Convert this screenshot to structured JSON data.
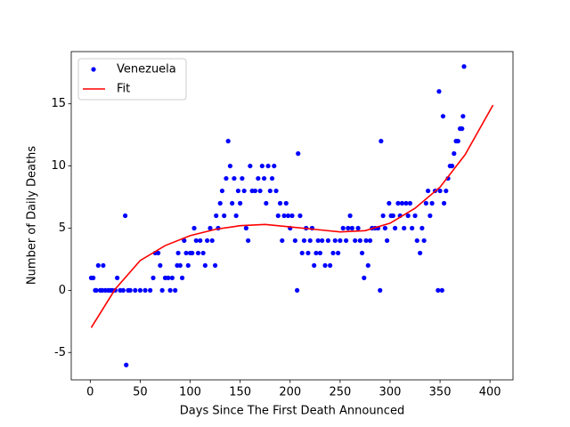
{
  "chart_data": {
    "type": "scatter",
    "xlabel": "Days Since The First Death Announced",
    "ylabel": "Number of Daily Deaths",
    "xlim": [
      -19,
      423
    ],
    "ylim": [
      -7.2,
      19.2
    ],
    "xticks": [
      0,
      50,
      100,
      150,
      200,
      250,
      300,
      350,
      400
    ],
    "yticks": [
      -5,
      0,
      5,
      10,
      15
    ],
    "grid": false,
    "legend": "upper left",
    "series": [
      {
        "name": "Venezuela",
        "type": "scatter",
        "color": "#0000ff",
        "x": [
          1,
          3,
          5,
          6,
          8,
          10,
          12,
          13,
          15,
          18,
          20,
          22,
          25,
          27,
          30,
          33,
          35,
          36,
          38,
          40,
          45,
          50,
          55,
          60,
          63,
          65,
          68,
          70,
          72,
          75,
          78,
          80,
          82,
          85,
          87,
          88,
          90,
          92,
          94,
          96,
          98,
          100,
          102,
          104,
          106,
          108,
          110,
          113,
          115,
          117,
          120,
          122,
          125,
          126,
          128,
          130,
          132,
          134,
          136,
          138,
          140,
          142,
          144,
          146,
          148,
          150,
          152,
          154,
          156,
          158,
          160,
          162,
          165,
          168,
          170,
          172,
          174,
          176,
          178,
          180,
          182,
          184,
          186,
          188,
          190,
          192,
          194,
          196,
          198,
          200,
          202,
          205,
          207,
          208,
          210,
          212,
          214,
          216,
          218,
          220,
          222,
          224,
          226,
          228,
          230,
          232,
          235,
          238,
          240,
          243,
          245,
          248,
          250,
          253,
          256,
          258,
          260,
          262,
          265,
          268,
          270,
          272,
          274,
          276,
          278,
          280,
          282,
          285,
          288,
          290,
          291,
          293,
          295,
          297,
          299,
          301,
          303,
          305,
          308,
          310,
          312,
          314,
          316,
          318,
          320,
          322,
          325,
          327,
          330,
          332,
          334,
          336,
          338,
          340,
          342,
          345,
          348,
          349,
          350,
          352,
          353,
          354,
          356,
          358,
          360,
          362,
          364,
          366,
          368,
          370,
          372,
          373,
          374
        ],
        "values": [
          1,
          1,
          0,
          0,
          2,
          0,
          0,
          2,
          0,
          0,
          0,
          0,
          0,
          1,
          0,
          0,
          6,
          -6,
          0,
          0,
          0,
          0,
          0,
          0,
          1,
          3,
          3,
          2,
          0,
          1,
          1,
          0,
          1,
          0,
          2,
          3,
          2,
          1,
          4,
          3,
          2,
          3,
          3,
          5,
          4,
          3,
          4,
          3,
          2,
          4,
          5,
          4,
          2,
          6,
          5,
          7,
          8,
          6,
          9,
          12,
          10,
          7,
          9,
          6,
          8,
          7,
          9,
          8,
          5,
          4,
          10,
          8,
          8,
          9,
          8,
          10,
          9,
          7,
          10,
          8,
          9,
          10,
          8,
          6,
          7,
          4,
          6,
          7,
          6,
          5,
          6,
          4,
          0,
          11,
          6,
          3,
          4,
          5,
          3,
          4,
          5,
          2,
          3,
          4,
          3,
          4,
          2,
          4,
          2,
          3,
          4,
          3,
          4,
          5,
          4,
          5,
          6,
          5,
          4,
          5,
          4,
          3,
          1,
          4,
          2,
          4,
          5,
          5,
          5,
          0,
          12,
          6,
          5,
          4,
          7,
          6,
          6,
          5,
          7,
          6,
          7,
          5,
          7,
          6,
          7,
          5,
          6,
          4,
          3,
          5,
          4,
          7,
          8,
          6,
          7,
          8,
          0,
          16,
          8,
          0,
          14,
          7,
          8,
          9,
          10,
          10,
          11,
          12,
          12,
          13,
          13,
          14,
          18
        ]
      },
      {
        "name": "Fit",
        "type": "line",
        "color": "#ff0000",
        "x": [
          1,
          25,
          50,
          75,
          100,
          125,
          150,
          175,
          200,
          225,
          250,
          275,
          300,
          325,
          350,
          375,
          403
        ],
        "values": [
          -3,
          0.1,
          2.4,
          3.6,
          4.4,
          4.9,
          5.2,
          5.3,
          5.1,
          4.9,
          4.7,
          4.8,
          5.4,
          6.6,
          8.3,
          10.9,
          14.9
        ]
      }
    ]
  }
}
